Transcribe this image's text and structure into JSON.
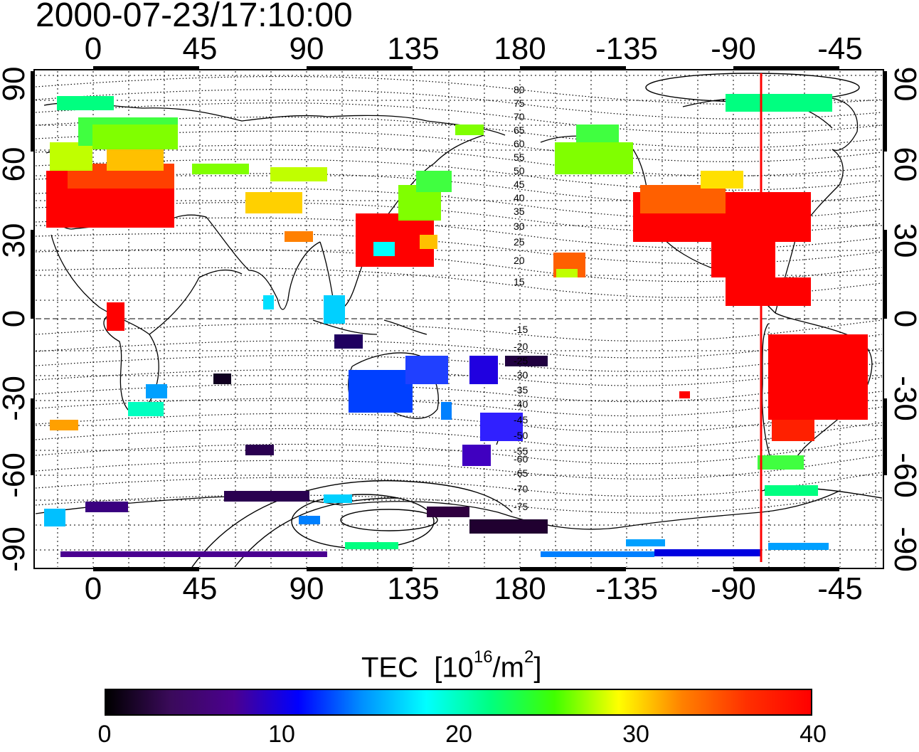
{
  "timestamp": "2000-07-23/17:10:00",
  "top_axis_labels": [
    "0",
    "45",
    "90",
    "135",
    "180",
    "-135",
    "-90",
    "-45"
  ],
  "bottom_axis_labels": [
    "0",
    "45",
    "90",
    "135",
    "180",
    "-135",
    "-90",
    "-45"
  ],
  "left_axis_labels": [
    "90",
    "60",
    "30",
    "0",
    "-30",
    "-60",
    "-90"
  ],
  "right_axis_labels": [
    "90",
    "60",
    "30",
    "0",
    "-30",
    "-60",
    "-90"
  ],
  "magnetic_lat_labels": [
    "80",
    "75",
    "70",
    "65",
    "60",
    "55",
    "50",
    "45",
    "40",
    "35",
    "30",
    "25",
    "20",
    "15",
    "-15",
    "-20",
    "-25",
    "-30",
    "-35",
    "-40",
    "-45",
    "-50",
    "-55",
    "-60",
    "-65",
    "-70",
    "-75"
  ],
  "colorbar": {
    "title": "TEC",
    "unit_prefix": "[10",
    "unit_exp": "16",
    "unit_mid": "/m",
    "unit_exp2": "2",
    "unit_suffix": "]",
    "tick_labels": [
      "0",
      "10",
      "20",
      "30",
      "40"
    ],
    "colors": [
      "#000000",
      "#3a0a5a",
      "#4b0090",
      "#0000ff",
      "#0090ff",
      "#00ffff",
      "#00ff80",
      "#40ff00",
      "#ffff00",
      "#ff8000",
      "#ff3000",
      "#ff0000"
    ]
  },
  "marker_longitude_color": "#ff0000"
}
